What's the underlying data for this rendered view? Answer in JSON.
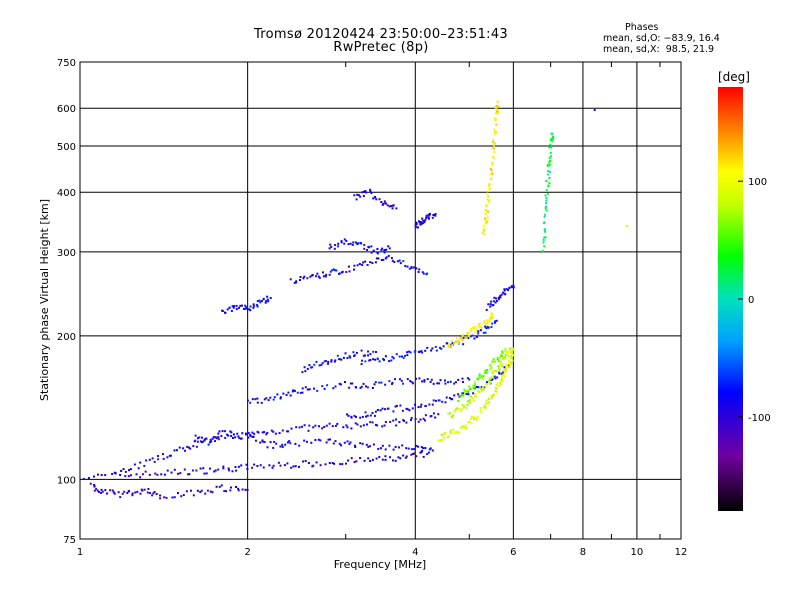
{
  "chart_data": {
    "type": "scatter",
    "title": "Tromsø 20120424 23:50:00–23:51:43",
    "subtitle": "RwPretec (8p)",
    "xlabel": "Frequency [MHz]",
    "ylabel": "Stationary phase Virtual Height [km]",
    "x_scale": "log",
    "y_scale": "log",
    "xlim": [
      1,
      12
    ],
    "ylim": [
      75,
      750
    ],
    "x_ticks": [
      1,
      2,
      4,
      6,
      8,
      10,
      12
    ],
    "y_ticks": [
      75,
      100,
      200,
      300,
      400,
      500,
      600,
      750
    ],
    "grid": true,
    "stats": {
      "heading": "Phases",
      "line1": "mean, sd,O: −83.9, 16.4",
      "line2": "mean, sd,X:  98.5, 21.9"
    },
    "colorbar": {
      "unit": "[deg]",
      "range": [
        -180,
        180
      ],
      "ticks": [
        100,
        0,
        -100
      ]
    },
    "traces": [
      {
        "phase_deg": -95,
        "points": [
          [
            1.0,
            101
          ],
          [
            1.2,
            102
          ],
          [
            1.4,
            103
          ],
          [
            1.6,
            104
          ],
          [
            1.8,
            105
          ],
          [
            2.0,
            106
          ],
          [
            2.3,
            107
          ],
          [
            2.6,
            108
          ],
          [
            3.0,
            109
          ],
          [
            3.4,
            110
          ],
          [
            3.8,
            111
          ],
          [
            4.2,
            113
          ]
        ]
      },
      {
        "phase_deg": -90,
        "points": [
          [
            1.15,
            103
          ],
          [
            1.3,
            108
          ],
          [
            1.45,
            113
          ],
          [
            1.6,
            118
          ],
          [
            1.8,
            122
          ],
          [
            2.0,
            124
          ],
          [
            2.2,
            126
          ],
          [
            2.5,
            128
          ],
          [
            2.8,
            129
          ],
          [
            3.2,
            130
          ],
          [
            3.6,
            131
          ],
          [
            4.0,
            133
          ],
          [
            4.4,
            137
          ]
        ]
      },
      {
        "phase_deg": -100,
        "points": [
          [
            1.05,
            97
          ],
          [
            1.1,
            94
          ],
          [
            1.2,
            93
          ],
          [
            1.3,
            95
          ],
          [
            1.4,
            92
          ],
          [
            1.6,
            94
          ],
          [
            1.8,
            96
          ],
          [
            2.0,
            95
          ]
        ]
      },
      {
        "phase_deg": -92,
        "points": [
          [
            1.6,
            122
          ],
          [
            1.7,
            120
          ],
          [
            1.8,
            125
          ],
          [
            2.0,
            123
          ],
          [
            2.2,
            118
          ],
          [
            2.4,
            119
          ],
          [
            2.8,
            121
          ],
          [
            3.1,
            118
          ],
          [
            3.5,
            117
          ],
          [
            4.0,
            116
          ],
          [
            4.3,
            115
          ]
        ]
      },
      {
        "phase_deg": -85,
        "points": [
          [
            2.0,
            145
          ],
          [
            2.2,
            148
          ],
          [
            2.4,
            152
          ],
          [
            2.6,
            155
          ],
          [
            3.0,
            158
          ],
          [
            3.3,
            157
          ],
          [
            3.7,
            160
          ],
          [
            4.1,
            162
          ],
          [
            4.5,
            160
          ],
          [
            5.0,
            162
          ]
        ]
      },
      {
        "phase_deg": -88,
        "points": [
          [
            3.0,
            135
          ],
          [
            3.3,
            137
          ],
          [
            3.6,
            140
          ],
          [
            4.0,
            142
          ],
          [
            4.4,
            145
          ],
          [
            4.8,
            150
          ],
          [
            5.2,
            155
          ],
          [
            5.6,
            163
          ],
          [
            5.9,
            172
          ]
        ]
      },
      {
        "phase_deg": -80,
        "points": [
          [
            3.2,
            175
          ],
          [
            3.5,
            178
          ],
          [
            3.8,
            182
          ],
          [
            4.1,
            186
          ],
          [
            4.5,
            190
          ],
          [
            4.9,
            195
          ],
          [
            5.3,
            205
          ],
          [
            5.6,
            215
          ]
        ]
      },
      {
        "phase_deg": -82,
        "points": [
          [
            2.5,
            170
          ],
          [
            2.7,
            175
          ],
          [
            2.9,
            180
          ],
          [
            3.1,
            183
          ],
          [
            3.4,
            185
          ]
        ]
      },
      {
        "phase_deg": -85,
        "points": [
          [
            2.4,
            260
          ],
          [
            2.6,
            265
          ],
          [
            2.8,
            270
          ],
          [
            3.0,
            275
          ],
          [
            3.3,
            285
          ],
          [
            3.6,
            290
          ],
          [
            3.9,
            280
          ],
          [
            4.2,
            270
          ]
        ]
      },
      {
        "phase_deg": -90,
        "points": [
          [
            2.8,
            305
          ],
          [
            3.0,
            315
          ],
          [
            3.2,
            310
          ],
          [
            3.4,
            300
          ],
          [
            3.6,
            305
          ]
        ]
      },
      {
        "phase_deg": -92,
        "points": [
          [
            3.1,
            390
          ],
          [
            3.3,
            400
          ],
          [
            3.5,
            380
          ],
          [
            3.7,
            370
          ]
        ]
      },
      {
        "phase_deg": -88,
        "points": [
          [
            4.0,
            340
          ],
          [
            4.1,
            345
          ],
          [
            4.2,
            355
          ],
          [
            4.35,
            360
          ]
        ]
      },
      {
        "phase_deg": -85,
        "points": [
          [
            1.8,
            225
          ],
          [
            1.9,
            230
          ],
          [
            2.0,
            228
          ],
          [
            2.1,
            234
          ],
          [
            2.2,
            240
          ]
        ]
      },
      {
        "phase_deg": -90,
        "points": [
          [
            5.4,
            230
          ],
          [
            5.6,
            238
          ],
          [
            5.8,
            248
          ],
          [
            6.0,
            255
          ]
        ]
      },
      {
        "phase_deg": 95,
        "points": [
          [
            4.4,
            122
          ],
          [
            4.6,
            124
          ],
          [
            4.8,
            127
          ],
          [
            5.0,
            131
          ],
          [
            5.2,
            137
          ],
          [
            5.4,
            145
          ],
          [
            5.55,
            152
          ],
          [
            5.7,
            160
          ],
          [
            5.8,
            168
          ],
          [
            5.9,
            175
          ],
          [
            6.0,
            182
          ]
        ]
      },
      {
        "phase_deg": 85,
        "points": [
          [
            4.6,
            136
          ],
          [
            4.8,
            140
          ],
          [
            5.0,
            145
          ],
          [
            5.2,
            152
          ],
          [
            5.4,
            160
          ],
          [
            5.55,
            168
          ],
          [
            5.7,
            175
          ],
          [
            5.85,
            182
          ],
          [
            6.0,
            188
          ]
        ]
      },
      {
        "phase_deg": 60,
        "points": [
          [
            4.8,
            148
          ],
          [
            5.0,
            155
          ],
          [
            5.2,
            162
          ],
          [
            5.4,
            170
          ],
          [
            5.6,
            178
          ],
          [
            5.8,
            186
          ]
        ]
      },
      {
        "phase_deg": 110,
        "points": [
          [
            4.6,
            190
          ],
          [
            4.8,
            196
          ],
          [
            5.0,
            202
          ],
          [
            5.2,
            208
          ],
          [
            5.4,
            215
          ],
          [
            5.5,
            222
          ]
        ]
      },
      {
        "phase_deg": 110,
        "points": [
          [
            5.3,
            330
          ],
          [
            5.35,
            350
          ],
          [
            5.4,
            380
          ],
          [
            5.45,
            420
          ],
          [
            5.5,
            460
          ],
          [
            5.55,
            520
          ],
          [
            5.6,
            580
          ],
          [
            5.62,
            620
          ]
        ]
      },
      {
        "phase_deg": 20,
        "points": [
          [
            6.8,
            300
          ],
          [
            6.85,
            350
          ],
          [
            6.9,
            400
          ],
          [
            6.95,
            450
          ],
          [
            7.0,
            500
          ],
          [
            7.05,
            530
          ]
        ]
      },
      {
        "phase_deg": -100,
        "points": [
          [
            8.4,
            595
          ]
        ]
      },
      {
        "phase_deg": 100,
        "points": [
          [
            9.6,
            340
          ]
        ]
      }
    ]
  }
}
